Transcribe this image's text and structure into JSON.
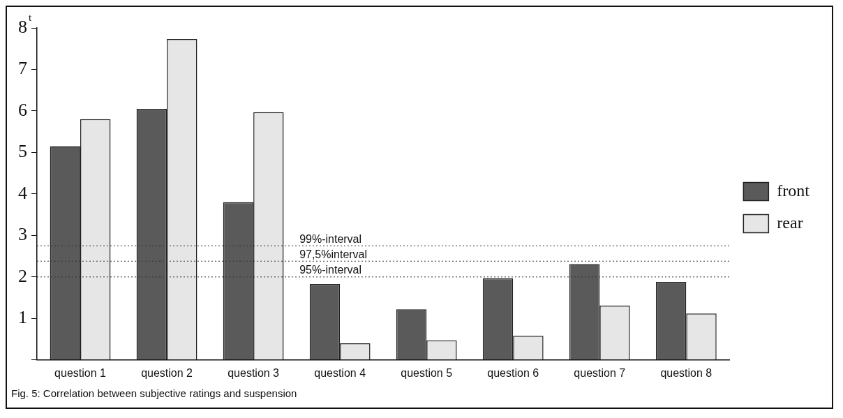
{
  "chart_data": {
    "type": "bar",
    "ylabel": "t",
    "categories": [
      "question 1",
      "question 2",
      "question 3",
      "question 4",
      "question 5",
      "question 6",
      "question 7",
      "question 8"
    ],
    "series": [
      {
        "name": "front",
        "color": "#5a5a5a",
        "values": [
          5.15,
          6.05,
          3.8,
          1.83,
          1.22,
          1.97,
          2.31,
          1.88
        ]
      },
      {
        "name": "rear",
        "color": "#e6e6e6",
        "values": [
          5.8,
          7.73,
          5.97,
          0.4,
          0.47,
          0.58,
          1.31,
          1.12
        ]
      }
    ],
    "ylim": [
      0,
      8
    ],
    "yticks": [
      {
        "value": 0,
        "label": null
      },
      1,
      2,
      3,
      4,
      5,
      6,
      7,
      8
    ],
    "grid": false,
    "legend": "right",
    "ref_lines": [
      {
        "axis": "y",
        "value": 2.75,
        "label": "99%-interval",
        "line_style": "dotted"
      },
      {
        "axis": "y",
        "value": 2.38,
        "label": "97,5%interval",
        "line_style": "dotted"
      },
      {
        "axis": "y",
        "value": 2,
        "label": "95%-interval",
        "line_style": "dotted"
      }
    ],
    "annotations": [
      "Fig. 5: Correlation between subjective ratings and suspension"
    ]
  }
}
